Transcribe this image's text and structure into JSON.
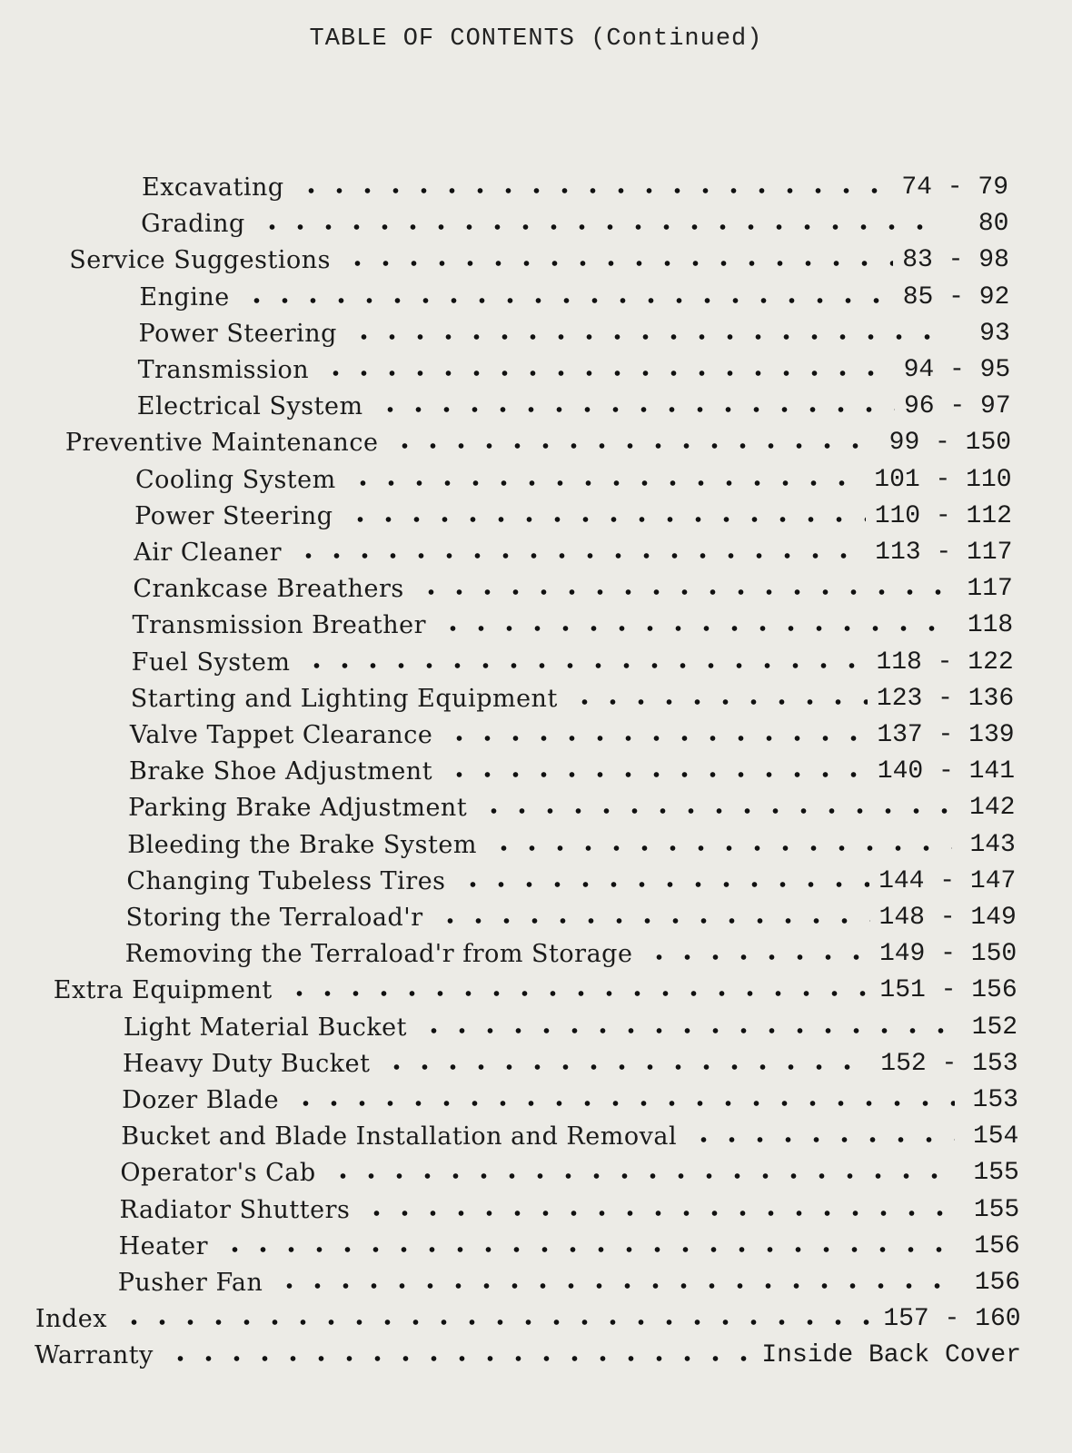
{
  "title": "TABLE OF CONTENTS (Continued)",
  "entries": [
    {
      "label": "Excavating",
      "page": "74 - 79",
      "level": 1
    },
    {
      "label": "Grading",
      "page": "80",
      "level": 1
    },
    {
      "label": "Service Suggestions",
      "page": "83 - 98",
      "level": 0
    },
    {
      "label": "Engine",
      "page": "85 - 92",
      "level": 1
    },
    {
      "label": "Power Steering",
      "page": "93",
      "level": 1
    },
    {
      "label": "Transmission",
      "page": "94 - 95",
      "level": 1
    },
    {
      "label": "Electrical System",
      "page": "96 - 97",
      "level": 1
    },
    {
      "label": "Preventive Maintenance",
      "page": "99 - 150",
      "level": 0
    },
    {
      "label": "Cooling System",
      "page": "101 - 110",
      "level": 1
    },
    {
      "label": "Power Steering",
      "page": "110 - 112",
      "level": 1
    },
    {
      "label": "Air Cleaner",
      "page": "113 - 117",
      "level": 1
    },
    {
      "label": "Crankcase Breathers",
      "page": "117",
      "level": 1
    },
    {
      "label": "Transmission Breather",
      "page": "118",
      "level": 1
    },
    {
      "label": "Fuel System",
      "page": "118 - 122",
      "level": 1
    },
    {
      "label": "Starting and Lighting Equipment",
      "page": "123 - 136",
      "level": 1
    },
    {
      "label": "Valve Tappet Clearance",
      "page": "137 - 139",
      "level": 1
    },
    {
      "label": "Brake Shoe Adjustment",
      "page": "140 - 141",
      "level": 1
    },
    {
      "label": "Parking Brake Adjustment",
      "page": "142",
      "level": 1
    },
    {
      "label": "Bleeding the Brake System",
      "page": "143",
      "level": 1
    },
    {
      "label": "Changing Tubeless Tires",
      "page": "144 - 147",
      "level": 1
    },
    {
      "label": "Storing the Terraload'r",
      "page": "148 - 149",
      "level": 1
    },
    {
      "label": "Removing the Terraload'r from Storage",
      "page": "149 - 150",
      "level": 1
    },
    {
      "label": "Extra Equipment",
      "page": "151 - 156",
      "level": 0
    },
    {
      "label": "Light Material Bucket",
      "page": "152",
      "level": 1
    },
    {
      "label": "Heavy Duty Bucket",
      "page": "152 - 153",
      "level": 1
    },
    {
      "label": "Dozer Blade",
      "page": "153",
      "level": 1
    },
    {
      "label": "Bucket and Blade Installation and Removal",
      "page": "154",
      "level": 1
    },
    {
      "label": "Operator's Cab",
      "page": "155",
      "level": 1
    },
    {
      "label": "Radiator Shutters",
      "page": "155",
      "level": 1
    },
    {
      "label": "Heater",
      "page": "156",
      "level": 1
    },
    {
      "label": "Pusher Fan",
      "page": "156",
      "level": 1
    },
    {
      "label": "Index",
      "page": "157 - 160",
      "level": -1
    },
    {
      "label": "Warranty",
      "page": "Inside Back Cover",
      "level": -1
    }
  ]
}
